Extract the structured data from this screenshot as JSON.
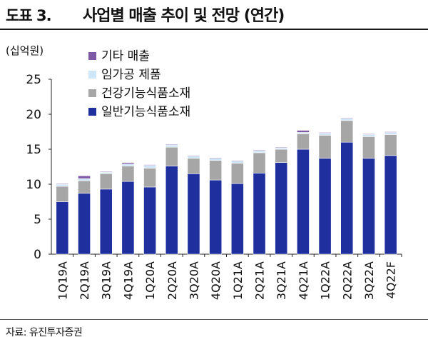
{
  "figure_label": "도표 3.",
  "figure_title": "사업별 매출 추이 및 전망 (연간)",
  "unit_label": "(십억원)",
  "source": "자료: 유진투자증권",
  "chart_data": {
    "type": "bar",
    "stacked": true,
    "title": "사업별 매출 추이 및 전망 (연간)",
    "ylabel": "(십억원)",
    "ylim": [
      0,
      25
    ],
    "yticks": [
      0,
      5,
      10,
      15,
      20,
      25
    ],
    "grid": false,
    "legend_position": "top-left",
    "categories": [
      "1Q19A",
      "2Q19A",
      "3Q19A",
      "4Q19A",
      "1Q20A",
      "2Q20A",
      "3Q20A",
      "4Q20A",
      "1Q21A",
      "2Q21A",
      "3Q21A",
      "4Q21A",
      "1Q22A",
      "2Q22A",
      "3Q22A",
      "4Q22F"
    ],
    "series": [
      {
        "name": "일반기능식품소재",
        "color": "#1f2f9e",
        "values": [
          7.5,
          8.7,
          9.3,
          10.4,
          9.6,
          12.6,
          11.5,
          10.6,
          10.1,
          11.6,
          13.1,
          15.0,
          13.7,
          16.0,
          13.7,
          14.1
        ]
      },
      {
        "name": "건강기능식품소재",
        "color": "#a6a6a6",
        "values": [
          2.2,
          1.8,
          2.2,
          2.2,
          2.7,
          2.7,
          2.2,
          2.8,
          2.9,
          2.9,
          1.9,
          2.2,
          3.3,
          3.1,
          3.1,
          3.0
        ]
      },
      {
        "name": "임가공 제품",
        "color": "#cfe6f8",
        "values": [
          0.3,
          0.3,
          0.2,
          0.3,
          0.4,
          0.3,
          0.3,
          0.3,
          0.3,
          0.3,
          0.2,
          0.2,
          0.3,
          0.3,
          0.3,
          0.3
        ]
      },
      {
        "name": "기타 매출",
        "color": "#7e5aa6",
        "values": [
          0.1,
          0.4,
          0.1,
          0.2,
          0.1,
          0.1,
          0.1,
          0.1,
          0.1,
          0.1,
          0.1,
          0.3,
          0.1,
          0.1,
          0.1,
          0.1
        ]
      }
    ]
  }
}
